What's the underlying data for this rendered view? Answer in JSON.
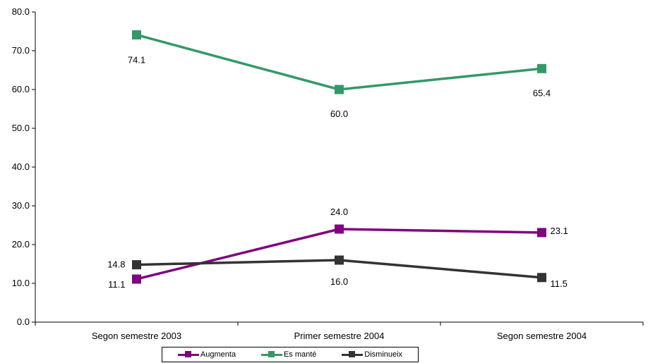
{
  "chart_data": {
    "type": "line",
    "categories": [
      "Segon semestre 2003",
      "Primer semestre 2004",
      "Segon semestre 2004"
    ],
    "ylim": [
      0,
      80
    ],
    "yticks": [
      "0.0",
      "10.0",
      "20.0",
      "30.0",
      "40.0",
      "50.0",
      "60.0",
      "70.0",
      "80.0"
    ],
    "grid": false,
    "legend_position": "bottom",
    "series": [
      {
        "name": "Augmenta",
        "color": "#800080",
        "values": [
          11.1,
          24.0,
          23.1
        ],
        "labels": [
          "11.1",
          "24.0",
          "23.1"
        ]
      },
      {
        "name": "Es manté",
        "color": "#339966",
        "values": [
          74.1,
          60.0,
          65.4
        ],
        "labels": [
          "74.1",
          "60.0",
          "65.4"
        ]
      },
      {
        "name": "Disminueix",
        "color": "#333333",
        "values": [
          14.8,
          16.0,
          11.5
        ],
        "labels": [
          "14.8",
          "16.0",
          "11.5"
        ]
      }
    ]
  }
}
